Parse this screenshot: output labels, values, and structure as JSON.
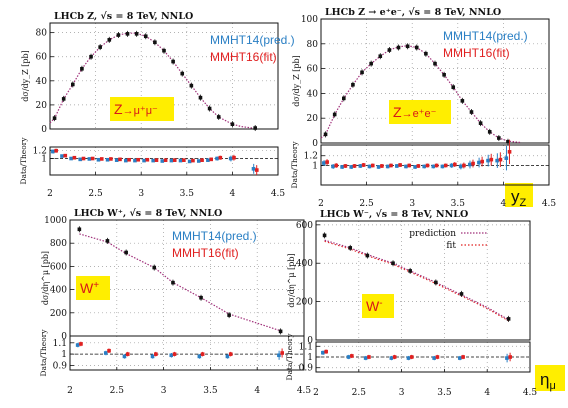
{
  "colors": {
    "pred": "#2a7fc4",
    "fit": "#e02020",
    "curve": "#a0307a",
    "tag_bg": "#ffee00",
    "tag_text": "#d81818",
    "data": "#111111"
  },
  "outer_labels": {
    "yz": "y",
    "yz_sub": "Z",
    "eta": "η",
    "eta_sub": "μ"
  },
  "chart_data": [
    {
      "id": "z-mumu",
      "type": "scatter",
      "title": "LHCb Z, √s = 8 TeV, NNLO",
      "ylabel": "dσ/dy_Z [pb]",
      "ratio_ylabel": "Data/Theory",
      "legend": [
        "MMHT14(pred.)",
        "MMHT16(fit)"
      ],
      "legend_style": "text",
      "tag": {
        "base": "Z",
        "sup": "",
        "rest": "→μ⁺μ⁻"
      },
      "xlim": [
        2,
        4.5
      ],
      "ylim": [
        0,
        88
      ],
      "rlim": [
        0.6,
        1.28
      ],
      "yticks": [
        0,
        20,
        40,
        60,
        80
      ],
      "rticks": [
        1.0,
        1.2
      ],
      "rtick_labels": [
        "1",
        "1.2"
      ],
      "xticks": [
        2,
        2.5,
        3,
        3.5,
        4,
        4.5
      ],
      "x": [
        2.05,
        2.15,
        2.25,
        2.35,
        2.45,
        2.55,
        2.65,
        2.75,
        2.85,
        2.95,
        3.05,
        3.15,
        3.25,
        3.35,
        3.45,
        3.55,
        3.65,
        3.75,
        3.85,
        4.0,
        4.25
      ],
      "y": [
        9,
        25,
        37,
        50,
        60,
        68,
        74,
        78,
        79,
        79,
        77,
        72,
        65,
        56,
        46,
        36,
        26,
        17,
        10,
        4,
        0.8
      ],
      "theory_x": [
        2.0,
        2.05,
        2.15,
        2.25,
        2.35,
        2.45,
        2.55,
        2.65,
        2.75,
        2.85,
        2.95,
        3.05,
        3.15,
        3.25,
        3.35,
        3.45,
        3.55,
        3.65,
        3.75,
        3.85,
        4.0,
        4.1,
        4.25
      ],
      "theory_y": [
        5,
        9,
        25,
        37,
        50,
        60,
        68,
        74,
        78,
        79.5,
        79.5,
        77,
        72,
        65,
        56,
        46,
        36,
        26,
        17,
        10,
        4,
        2,
        0.5
      ],
      "ratio_pred": [
        1.17,
        1.06,
        1.0,
        0.98,
        0.99,
        0.97,
        0.97,
        0.96,
        0.95,
        0.95,
        0.95,
        0.95,
        0.94,
        0.95,
        0.95,
        0.93,
        0.94,
        0.96,
        1.0,
        1.0,
        0.75
      ],
      "ratio_fit": [
        1.19,
        1.07,
        1.02,
        1.0,
        1.0,
        0.99,
        0.99,
        0.98,
        0.97,
        0.97,
        0.97,
        0.96,
        0.96,
        0.96,
        0.96,
        0.95,
        0.96,
        0.98,
        1.02,
        1.02,
        0.72
      ],
      "ratio_err": [
        0.05,
        0.03,
        0.02,
        0.02,
        0.02,
        0.02,
        0.02,
        0.02,
        0.02,
        0.02,
        0.02,
        0.02,
        0.02,
        0.02,
        0.02,
        0.02,
        0.03,
        0.04,
        0.05,
        0.07,
        0.12
      ]
    },
    {
      "id": "z-ee",
      "type": "scatter",
      "title": "LHCb Z → e⁺e⁻, √s = 8 TeV, NNLO",
      "ylabel": "dσ/dy_Z [pb]",
      "ratio_ylabel": "Data/Theory",
      "legend": [
        "MMHT14(pred.)",
        "MMHT16(fit)"
      ],
      "legend_style": "text",
      "tag": {
        "base": "Z",
        "sup": "",
        "rest": "→e⁺e⁻"
      },
      "xlim": [
        2,
        4.5
      ],
      "ylim": [
        0,
        100
      ],
      "rlim": [
        0.6,
        1.42
      ],
      "yticks": [
        0,
        20,
        40,
        60,
        80,
        100
      ],
      "rticks": [
        1.0,
        1.2
      ],
      "rtick_labels": [
        "1",
        "1.2"
      ],
      "xticks": [
        2,
        2.5,
        3,
        3.5,
        4,
        4.5
      ],
      "x": [
        2.05,
        2.15,
        2.25,
        2.35,
        2.45,
        2.55,
        2.65,
        2.75,
        2.85,
        2.95,
        3.05,
        3.15,
        3.25,
        3.35,
        3.45,
        3.55,
        3.65,
        3.75,
        3.85,
        3.95,
        4.05
      ],
      "y": [
        7,
        23,
        36,
        47,
        57,
        64,
        70,
        75,
        77,
        78,
        77,
        72,
        64,
        55,
        45,
        34,
        25,
        16,
        9,
        4,
        1
      ],
      "theory_x": [
        2.0,
        2.05,
        2.15,
        2.25,
        2.35,
        2.45,
        2.55,
        2.65,
        2.75,
        2.85,
        2.95,
        3.05,
        3.15,
        3.25,
        3.35,
        3.45,
        3.55,
        3.65,
        3.75,
        3.85,
        3.95,
        4.05,
        4.2
      ],
      "theory_y": [
        4,
        7,
        23,
        36,
        47,
        57,
        64,
        70,
        75,
        77.5,
        78.5,
        77,
        72,
        64,
        55,
        45,
        34,
        25,
        16,
        9,
        4,
        1.5,
        0.3
      ],
      "ratio_pred": [
        1.05,
        0.98,
        0.97,
        0.97,
        0.99,
        0.98,
        0.97,
        0.98,
        0.99,
        0.98,
        0.97,
        0.98,
        0.98,
        0.98,
        1.0,
        0.98,
        1.02,
        1.06,
        1.1,
        1.1,
        1.15
      ],
      "ratio_fit": [
        1.07,
        1.0,
        0.99,
        0.99,
        1.01,
        1.0,
        0.99,
        1.0,
        1.01,
        1.0,
        0.99,
        1.0,
        1.0,
        1.0,
        1.02,
        1.0,
        1.04,
        1.08,
        1.12,
        1.12,
        1.28
      ],
      "ratio_err": [
        0.06,
        0.05,
        0.04,
        0.04,
        0.04,
        0.04,
        0.04,
        0.04,
        0.04,
        0.04,
        0.04,
        0.04,
        0.04,
        0.04,
        0.05,
        0.06,
        0.08,
        0.1,
        0.12,
        0.15,
        0.25
      ]
    },
    {
      "id": "w-plus",
      "type": "scatter",
      "title": "LHCb W⁺, √s = 8 TeV, NNLO",
      "ylabel": "dσ/dη^μ [pb]",
      "ratio_ylabel": "Data/Theory",
      "legend": [
        "MMHT14(pred.)",
        "MMHT16(fit)"
      ],
      "legend_style": "text",
      "tag": {
        "base": "W",
        "sup": "+",
        "rest": ""
      },
      "xlim": [
        2,
        4.5
      ],
      "ylim": [
        0,
        1000
      ],
      "rlim": [
        0.86,
        1.16
      ],
      "yticks": [
        0,
        200,
        400,
        600,
        800,
        1000
      ],
      "rticks": [
        0.9,
        1.0,
        1.1
      ],
      "rtick_labels": [
        "0.9",
        "1",
        "1.1"
      ],
      "xticks": [
        2,
        2.5,
        3,
        3.5,
        4,
        4.5
      ],
      "x": [
        2.1,
        2.4,
        2.6,
        2.9,
        3.1,
        3.4,
        3.7,
        4.25
      ],
      "y": [
        920,
        820,
        720,
        590,
        460,
        330,
        180,
        40
      ],
      "theory_x": [
        2.1,
        2.4,
        2.6,
        2.9,
        3.1,
        3.4,
        3.7,
        4.0,
        4.25
      ],
      "theory_y": [
        880,
        810,
        710,
        590,
        460,
        330,
        190,
        110,
        45
      ],
      "ratio_pred": [
        1.08,
        1.01,
        0.98,
        0.98,
        0.99,
        0.98,
        0.98,
        0.99
      ],
      "ratio_fit": [
        1.09,
        1.03,
        1.0,
        1.0,
        1.0,
        1.0,
        1.0,
        1.01
      ],
      "ratio_err": [
        0.02,
        0.02,
        0.02,
        0.02,
        0.02,
        0.02,
        0.02,
        0.04
      ]
    },
    {
      "id": "w-minus",
      "type": "scatter",
      "title": "LHCb W⁻, √s = 8 TeV, NNLO",
      "ylabel": "dσ/dη^μ [pb]",
      "ratio_ylabel": "Data/Theory",
      "legend": [
        "prediction",
        "fit"
      ],
      "legend_style": "lines",
      "tag": {
        "base": "W",
        "sup": "-",
        "rest": ""
      },
      "xlim": [
        2,
        4.5
      ],
      "ylim": [
        0,
        620
      ],
      "rlim": [
        0.86,
        1.14
      ],
      "yticks": [
        0,
        200,
        400,
        600
      ],
      "rticks": [
        0.9,
        1.0,
        1.1
      ],
      "rtick_labels": [
        "0.9",
        "1",
        "1.1"
      ],
      "xticks": [
        2,
        2.5,
        3,
        3.5,
        4,
        4.5
      ],
      "x": [
        2.1,
        2.4,
        2.6,
        2.9,
        3.1,
        3.4,
        3.7,
        4.25
      ],
      "y": [
        545,
        480,
        440,
        400,
        360,
        300,
        240,
        110
      ],
      "theory_x": [
        2.1,
        2.4,
        2.6,
        2.9,
        3.1,
        3.4,
        3.7,
        4.0,
        4.25
      ],
      "theory_y": [
        520,
        480,
        445,
        400,
        360,
        300,
        235,
        170,
        105
      ],
      "ratio_pred": [
        1.04,
        1.0,
        0.99,
        0.99,
        0.99,
        0.99,
        0.99,
        0.99
      ],
      "ratio_fit": [
        1.05,
        1.01,
        1.0,
        1.0,
        1.0,
        1.0,
        1.0,
        1.0
      ],
      "ratio_err": [
        0.02,
        0.02,
        0.02,
        0.02,
        0.02,
        0.02,
        0.02,
        0.04
      ]
    }
  ]
}
